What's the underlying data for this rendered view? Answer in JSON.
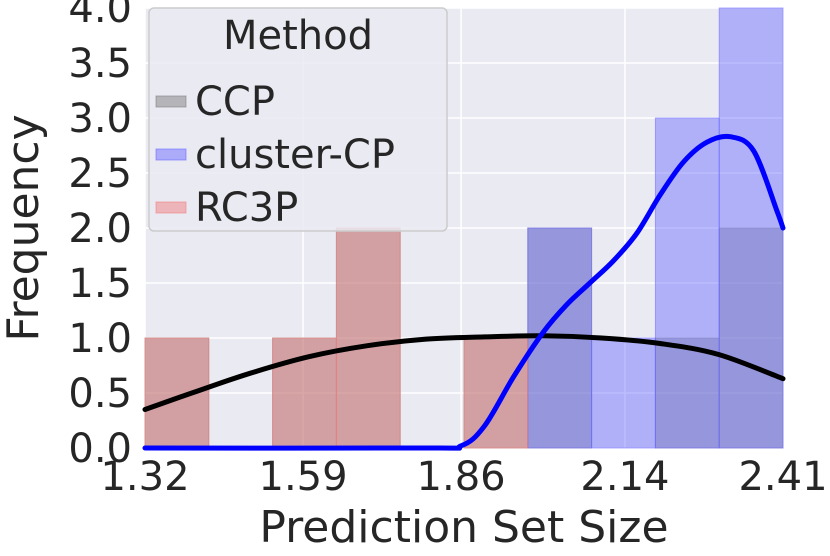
{
  "chart_data": {
    "type": "histogram",
    "xlabel": "Prediction Set Size",
    "ylabel": "Frequency",
    "xlim": [
      1.32,
      2.41
    ],
    "ylim": [
      0,
      4.0
    ],
    "xticks": [
      "1.32",
      "1.59",
      "1.86",
      "2.14",
      "2.41"
    ],
    "yticks": [
      "0.0",
      "0.5",
      "1.0",
      "1.5",
      "2.0",
      "2.5",
      "3.0",
      "3.5",
      "4.0"
    ],
    "grid": true,
    "legend": {
      "title": "Method",
      "placement": "top-left",
      "entries": [
        "CCP",
        "cluster-CP",
        "RC3P"
      ]
    },
    "bin_edges": [
      1.32,
      1.429,
      1.538,
      1.647,
      1.756,
      1.865,
      1.974,
      2.083,
      2.192,
      2.301,
      2.41
    ],
    "series": [
      {
        "name": "CCP",
        "color": "#808080",
        "counts": [
          1,
          0,
          1,
          2,
          0,
          1,
          2,
          0,
          1,
          2
        ]
      },
      {
        "name": "cluster-CP",
        "color": "#6b6bff",
        "counts": [
          0,
          0,
          0,
          0,
          0,
          0,
          2,
          1,
          3,
          4
        ]
      },
      {
        "name": "RC3P",
        "color": "#f08080",
        "counts": [
          1,
          0,
          1,
          2,
          0,
          1,
          0,
          0,
          0,
          0
        ]
      }
    ],
    "kde": [
      {
        "name": "CCP",
        "color": "#000000",
        "points": [
          [
            1.32,
            0.35
          ],
          [
            1.4,
            0.5
          ],
          [
            1.5,
            0.68
          ],
          [
            1.6,
            0.83
          ],
          [
            1.7,
            0.93
          ],
          [
            1.8,
            0.99
          ],
          [
            1.9,
            1.01
          ],
          [
            2.0,
            1.02
          ],
          [
            2.1,
            1.0
          ],
          [
            2.2,
            0.95
          ],
          [
            2.3,
            0.85
          ],
          [
            2.41,
            0.63
          ]
        ]
      },
      {
        "name": "cluster-CP",
        "color": "#0000ff",
        "points": [
          [
            1.32,
            0.0
          ],
          [
            1.8,
            0.0
          ],
          [
            1.86,
            0.02
          ],
          [
            1.9,
            0.2
          ],
          [
            1.95,
            0.65
          ],
          [
            2.0,
            1.05
          ],
          [
            2.04,
            1.3
          ],
          [
            2.08,
            1.5
          ],
          [
            2.12,
            1.7
          ],
          [
            2.16,
            1.95
          ],
          [
            2.2,
            2.3
          ],
          [
            2.24,
            2.6
          ],
          [
            2.28,
            2.78
          ],
          [
            2.32,
            2.83
          ],
          [
            2.36,
            2.7
          ],
          [
            2.4,
            2.15
          ],
          [
            2.41,
            2.0
          ]
        ]
      }
    ]
  }
}
